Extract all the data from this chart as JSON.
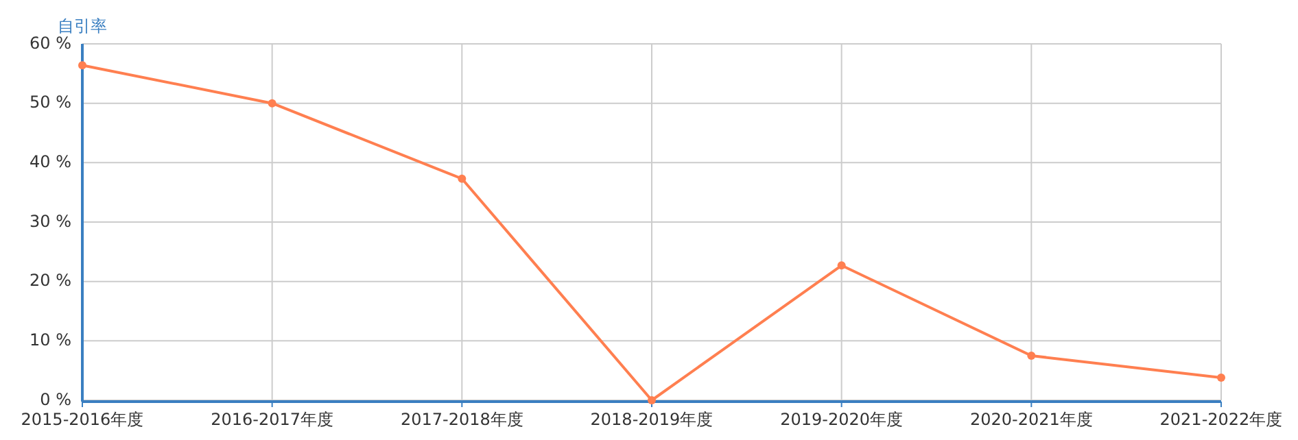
{
  "chart_data": {
    "type": "line",
    "ylabel": "自引率",
    "categories": [
      "2015-2016年度",
      "2016-2017年度",
      "2017-2018年度",
      "2018-2019年度",
      "2019-2020年度",
      "2020-2021年度",
      "2021-2022年度"
    ],
    "series": [
      {
        "color": "#ff7f50",
        "values": [
          56.4,
          50.0,
          37.3,
          0,
          22.7,
          7.5,
          3.8
        ]
      }
    ],
    "ylim": [
      0,
      60
    ],
    "yticks": [
      {
        "value": 0,
        "label": "0 %"
      },
      {
        "value": 10,
        "label": "10 %"
      },
      {
        "value": 20,
        "label": "20 %"
      },
      {
        "value": 30,
        "label": "30 %"
      },
      {
        "value": 40,
        "label": "40 %"
      },
      {
        "value": 50,
        "label": "50 %"
      },
      {
        "value": 60,
        "label": "60 %"
      }
    ],
    "grid": true,
    "marker": "circle",
    "line_style": "solid"
  }
}
